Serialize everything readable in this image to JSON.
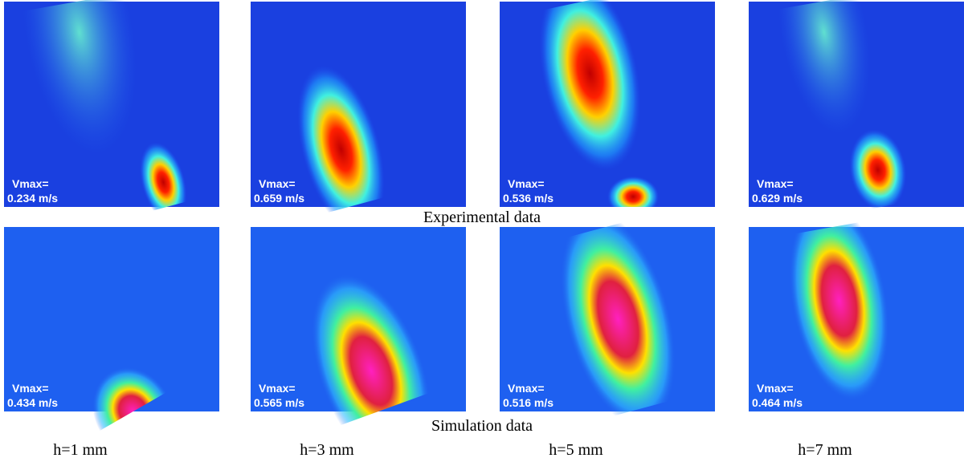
{
  "rows": [
    {
      "caption": "Experimental data",
      "panels": [
        {
          "label": "Vmax=",
          "value": "0.234 m/s"
        },
        {
          "label": "Vmax=",
          "value": "0.659 m/s"
        },
        {
          "label": "Vmax=",
          "value": "0.536 m/s"
        },
        {
          "label": "Vmax=",
          "value": "0.629 m/s"
        }
      ]
    },
    {
      "caption": "Simulation data",
      "panels": [
        {
          "label": "Vmax=",
          "value": "0.434 m/s"
        },
        {
          "label": "Vmax=",
          "value": "0.565 m/s"
        },
        {
          "label": "Vmax=",
          "value": "0.516 m/s"
        },
        {
          "label": "Vmax=",
          "value": "0.464 m/s"
        }
      ]
    }
  ],
  "column_labels": [
    "h=1 mm",
    "h=3 mm",
    "h=5 mm",
    "h=7 mm"
  ]
}
